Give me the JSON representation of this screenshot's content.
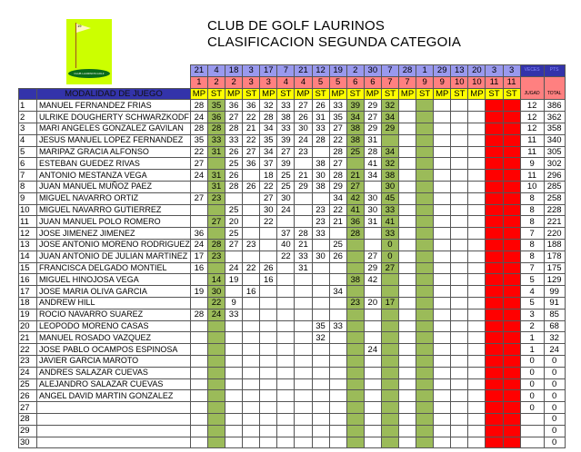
{
  "title": "CLUB DE GOLF LAURINOS",
  "subtitle": "CLASIFICACION SEGUNDA CATEGOIA",
  "logo": {
    "flag_number": "19",
    "text": "CLUB LAURINOS GOLF"
  },
  "header": {
    "modalidad_label": "MODALIDAD DE JUEGO",
    "days": [
      "21",
      "4",
      "18",
      "3",
      "17",
      "7",
      "21",
      "12",
      "19",
      "2",
      "30",
      "7",
      "28",
      "1",
      "29",
      "13",
      "20",
      "3",
      "3"
    ],
    "months": [
      "1",
      "2",
      "2",
      "3",
      "3",
      "4",
      "4",
      "5",
      "5",
      "6",
      "6",
      "7",
      "7",
      "9",
      "9",
      "10",
      "10",
      "11",
      "11"
    ],
    "modes": [
      "MP",
      "ST",
      "MP",
      "ST",
      "MP",
      "ST",
      "MP",
      "ST",
      "MP",
      "ST",
      "MP",
      "ST",
      "MP",
      "ST",
      "MP",
      "ST",
      "MP",
      "ST",
      "ST"
    ],
    "veces_top": "VECES",
    "veces_bottom": "JUGAD",
    "pts_top": "PTS",
    "pts_bottom": "TOTAL"
  },
  "column_colors": {
    "green": "#9bbb59",
    "red": "#ff0000",
    "green_columns": [
      1,
      9,
      11,
      13
    ],
    "red_columns": [
      17,
      18
    ]
  },
  "rows": [
    {
      "n": "1",
      "name": "MANUEL FERNANDEZ FRIAS",
      "s": [
        "28",
        "35",
        "36",
        "36",
        "32",
        "33",
        "27",
        "26",
        "33",
        "39",
        "29",
        "32"
      ],
      "veces": "12",
      "pts": "386"
    },
    {
      "n": "2",
      "name": "ULRIKE DOUGHERTY  SCHWARZKODF",
      "s": [
        "24",
        "36",
        "27",
        "22",
        "28",
        "38",
        "26",
        "31",
        "35",
        "34",
        "27",
        "34"
      ],
      "veces": "12",
      "pts": "362"
    },
    {
      "n": "3",
      "name": "MARI ANGELES GONZALEZ GAVILAN",
      "s": [
        "28",
        "28",
        "28",
        "21",
        "34",
        "33",
        "30",
        "33",
        "27",
        "38",
        "29",
        "29"
      ],
      "veces": "12",
      "pts": "358"
    },
    {
      "n": "4",
      "name": "JESUS MANUEL LOPEZ FERNANDEZ",
      "s": [
        "35",
        "33",
        "33",
        "22",
        "35",
        "39",
        "24",
        "28",
        "22",
        "38",
        "31",
        ""
      ],
      "veces": "11",
      "pts": "340"
    },
    {
      "n": "5",
      "name": "MARIPAZ GRACIA ALFONSO",
      "s": [
        "22",
        "31",
        "26",
        "27",
        "34",
        "27",
        "23",
        "",
        "28",
        "25",
        "28",
        "34"
      ],
      "veces": "11",
      "pts": "305"
    },
    {
      "n": "6",
      "name": "ESTEBAN GUEDEZ RIVAS",
      "s": [
        "27",
        "",
        "25",
        "36",
        "37",
        "39",
        "",
        "38",
        "27",
        "",
        "41",
        "32"
      ],
      "veces": "9",
      "pts": "302"
    },
    {
      "n": "7",
      "name": "ANTONIO MESTANZA VEGA",
      "s": [
        "24",
        "31",
        "26",
        "",
        "18",
        "25",
        "21",
        "30",
        "28",
        "21",
        "34",
        "38"
      ],
      "veces": "11",
      "pts": "296"
    },
    {
      "n": "8",
      "name": "JUAN MANUEL MUÑOZ PAEZ",
      "s": [
        "",
        "31",
        "28",
        "26",
        "22",
        "25",
        "29",
        "38",
        "29",
        "27",
        "",
        "30"
      ],
      "veces": "10",
      "pts": "285"
    },
    {
      "n": "9",
      "name": "MIGUEL NAVARRO ORTIZ",
      "s": [
        "27",
        "23",
        "",
        "",
        "27",
        "30",
        "",
        "",
        "34",
        "42",
        "30",
        "45"
      ],
      "veces": "8",
      "pts": "258"
    },
    {
      "n": "10",
      "name": "MIGUEL NAVARRO GUTIERREZ",
      "s": [
        "",
        "",
        "25",
        "",
        "30",
        "24",
        "",
        "23",
        "22",
        "41",
        "30",
        "33"
      ],
      "veces": "8",
      "pts": "228"
    },
    {
      "n": "11",
      "name": "JUAN MANUEL POLO ROMERO",
      "s": [
        "",
        "27",
        "20",
        "",
        "22",
        "",
        "",
        "23",
        "21",
        "36",
        "31",
        "41"
      ],
      "veces": "8",
      "pts": "221"
    },
    {
      "n": "12",
      "name": "JOSE JIMENEZ JIMENEZ",
      "s": [
        "36",
        "",
        "25",
        "",
        "",
        "37",
        "28",
        "33",
        "",
        "28",
        "",
        "33"
      ],
      "veces": "7",
      "pts": "220"
    },
    {
      "n": "13",
      "name": "JOSE ANTONIO MORENO RODRIGUEZ",
      "s": [
        "24",
        "28",
        "27",
        "23",
        "",
        "40",
        "21",
        "",
        "25",
        "",
        "",
        "0"
      ],
      "veces": "8",
      "pts": "188"
    },
    {
      "n": "14",
      "name": "JUAN ANTONIO DE JULIAN MARTINEZ",
      "s": [
        "17",
        "23",
        "",
        "",
        "",
        "22",
        "33",
        "30",
        "26",
        "",
        "27",
        "0"
      ],
      "veces": "8",
      "pts": "178"
    },
    {
      "n": "15",
      "name": "FRANCISCA DELGADO MONTIEL",
      "s": [
        "16",
        "",
        "24",
        "22",
        "26",
        "",
        "31",
        "",
        "",
        "",
        "29",
        "27"
      ],
      "veces": "7",
      "pts": "175"
    },
    {
      "n": "16",
      "name": "MIGUEL HINOJOSA VEGA",
      "s": [
        "",
        "14",
        "19",
        "",
        "16",
        "",
        "",
        "",
        "",
        "38",
        "42",
        ""
      ],
      "veces": "5",
      "pts": "129"
    },
    {
      "n": "17",
      "name": "JOSE MARIA OLIVA GARCIA",
      "s": [
        "19",
        "30",
        "",
        "16",
        "",
        "",
        "",
        "",
        "34",
        "",
        "",
        ""
      ],
      "veces": "4",
      "pts": "99"
    },
    {
      "n": "18",
      "name": "ANDREW HILL",
      "s": [
        "",
        "22",
        "9",
        "",
        "",
        "",
        "",
        "",
        "",
        "23",
        "20",
        "17"
      ],
      "veces": "5",
      "pts": "91"
    },
    {
      "n": "19",
      "name": "ROCIO NAVARRO SUAREZ",
      "s": [
        "28",
        "24",
        "33"
      ],
      "veces": "3",
      "pts": "85"
    },
    {
      "n": "20",
      "name": "LEOPODO MORENO CASAS",
      "s": [
        "",
        "",
        "",
        "",
        "",
        "",
        "",
        "35",
        "33"
      ],
      "veces": "2",
      "pts": "68"
    },
    {
      "n": "21",
      "name": "MANUEL ROSADO VAZQUEZ",
      "s": [
        "",
        "",
        "",
        "",
        "",
        "",
        "",
        "32"
      ],
      "veces": "1",
      "pts": "32"
    },
    {
      "n": "22",
      "name": "JOSE PABLO OCAMPOS ESPINOSA",
      "s": [
        "",
        "",
        "",
        "",
        "",
        "",
        "",
        "",
        "",
        "",
        "24"
      ],
      "veces": "1",
      "pts": "24"
    },
    {
      "n": "23",
      "name": "JAVIER GARCIA MAROTO",
      "s": [],
      "veces": "0",
      "pts": "0"
    },
    {
      "n": "24",
      "name": "ANDRES SALAZAR CUEVAS",
      "s": [],
      "veces": "0",
      "pts": "0"
    },
    {
      "n": "25",
      "name": "ALEJANDRO SALAZAR CUEVAS",
      "s": [],
      "veces": "0",
      "pts": "0"
    },
    {
      "n": "26",
      "name": "ANGEL DAVID MARTIN GONZALEZ",
      "s": [],
      "veces": "0",
      "pts": "0"
    },
    {
      "n": "27",
      "name": "",
      "s": [],
      "veces": "0",
      "pts": "0"
    },
    {
      "n": "28",
      "name": "",
      "s": [],
      "veces": "",
      "pts": "0"
    },
    {
      "n": "29",
      "name": "",
      "s": [],
      "veces": "",
      "pts": "0"
    },
    {
      "n": "30",
      "name": "",
      "s": [],
      "veces": "",
      "pts": "0"
    }
  ]
}
